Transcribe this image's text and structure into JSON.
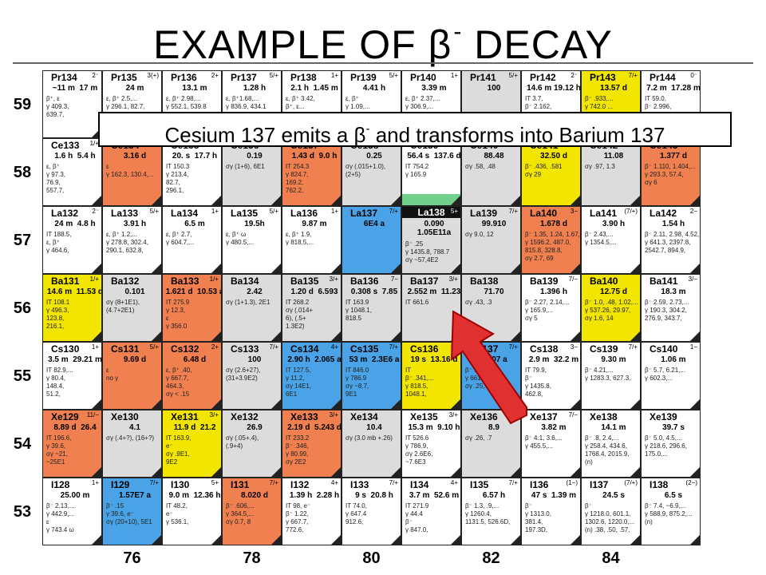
{
  "title": {
    "text": "EXAMPLE OF ",
    "beta": "β",
    "sup": "-",
    "suffix": " DECAY"
  },
  "callout": {
    "pre": "Cesium 137 emits a ",
    "beta": "β",
    "sup": "-",
    "post": " and transforms into Barium 137"
  },
  "rows": [
    "59",
    "58",
    "57",
    "56",
    "55",
    "54",
    "53"
  ],
  "cols": [
    "76",
    "78",
    "80",
    "82",
    "84"
  ],
  "colors": {
    "stable": "#dcdcdc",
    "beta_minus": "#4aa3e6",
    "beta_plus": "#f08050",
    "alpha": "#f2e600",
    "it": "#ffffff",
    "fission": "#58c878"
  },
  "grid": [
    [
      {
        "n": "Pr134",
        "s": "2⁻",
        "h": "~11 m  17 m",
        "d": "β⁺, ε\nγ 409.3,\n639.7,",
        "c": "white"
      },
      {
        "n": "Pr135",
        "s": "3(+)",
        "h": "24 m",
        "d": "ε, β⁺ 2.5,...\nγ 296.1, 82.7,\n...",
        "c": "white"
      },
      {
        "n": "Pr136",
        "s": "2+",
        "h": "13.1 m",
        "d": "ε, β⁺ 2.98,...\nγ 552.1, 539.8",
        "c": "white"
      },
      {
        "n": "Pr137",
        "s": "5/+",
        "h": "1.28 h",
        "d": "ε, β⁺1.68,...\nγ 836.9, 434.1",
        "c": "white"
      },
      {
        "n": "Pr138",
        "s": "1+",
        "h": "2.1 h  1.45 m",
        "d": "ε, β⁺ 3.42,\nβ⁺, ε...",
        "c": "white"
      },
      {
        "n": "Pr139",
        "s": "5/+",
        "h": "4.41 h",
        "d": "ε, β⁺\nγ 1.09,...",
        "c": "white"
      },
      {
        "n": "Pr140",
        "s": "1+",
        "h": "3.39 m",
        "d": "ε, β⁺ 2.37,...\nγ 306.9,...",
        "c": "white"
      },
      {
        "n": "Pr141",
        "s": "5/+",
        "h": "100",
        "d": "",
        "c": "stable",
        "band": "#4aa3e6"
      },
      {
        "n": "Pr142",
        "s": "2⁻",
        "h": "14.6 m 19.12 h",
        "d": "IT 3.7,\nβ⁻ 2.162,",
        "c": "white"
      },
      {
        "n": "Pr143",
        "s": "7/+",
        "h": "13.57 d",
        "d": "β⁻ .933,...\nγ 742.0 ...",
        "c": "yellow"
      },
      {
        "n": "Pr144",
        "s": "0⁻",
        "h": "7.2 m  17.28 m",
        "d": "IT 59.0,\nβ⁻ 2.996,\n696.5,",
        "c": "white"
      }
    ],
    [
      {
        "n": "Ce133",
        "s": "1/+",
        "h": "1.6 h  5.4 h",
        "d": "ε, β⁺\nγ 97.3,\n76.9,\n557.7,",
        "c": "white"
      },
      {
        "n": "Ce134",
        "s": "",
        "h": "3.16 d",
        "d": "ε\nγ 162.3, 130.4,...",
        "c": "orange"
      },
      {
        "n": "Ce135",
        "s": "",
        "h": "20. s  17.7 h",
        "d": "IT 150.3\nγ 213.4,\n82.7,\n296.1,",
        "c": "white"
      },
      {
        "n": "Ce136",
        "s": "",
        "h": "0.19",
        "d": "σγ (1+6), 6E1",
        "c": "stable"
      },
      {
        "n": "Ce137",
        "s": "",
        "h": "1.43 d  9.0 h",
        "d": "IT 254.3\nγ 824.7,\n169.2,\n762.2,",
        "c": "orange"
      },
      {
        "n": "Ce138",
        "s": "",
        "h": "0.25",
        "d": "σγ (.015+1.0),\n(2+5)",
        "c": "stable"
      },
      {
        "n": "Ce139",
        "s": "",
        "h": "56.4 s  137.6 d",
        "d": "IT 754.2\nγ 165.9",
        "c": "white",
        "band": "#58c878"
      },
      {
        "n": "Ce140",
        "s": "",
        "h": "88.48",
        "d": "σγ .58, .48",
        "c": "stable"
      },
      {
        "n": "Ce141",
        "s": "7/−",
        "h": "32.50 d",
        "d": "β⁻ .436, .581\nσγ 29",
        "c": "yellow"
      },
      {
        "n": "Ce142",
        "s": "",
        "h": "11.08",
        "d": "σγ .97, 1.3",
        "c": "stable"
      },
      {
        "n": "Ce143",
        "s": "3/−",
        "h": "1.377 d",
        "d": "β⁻ 1.110, 1.404,...\nγ 293.3, 57.4,\nσγ 6",
        "c": "orange"
      }
    ],
    [
      {
        "n": "La132",
        "s": "2⁻",
        "h": "24 m  4.8 h",
        "d": "IT 188.5,\nε, β⁺\nγ 464.6,",
        "c": "white"
      },
      {
        "n": "La133",
        "s": "5/+",
        "h": "3.91 h",
        "d": "ε, β⁺ 1.2,...\nγ 278.8, 302.4,\n290.1, 632.8,",
        "c": "white"
      },
      {
        "n": "La134",
        "s": "1+",
        "h": "6.5 m",
        "d": "ε, β⁺ 2.7,\nγ 604.7,...",
        "c": "white"
      },
      {
        "n": "La135",
        "s": "5/+",
        "h": "19.5h",
        "d": "ε, β⁺ ω\nγ 480.5,...",
        "c": "white"
      },
      {
        "n": "La136",
        "s": "1+",
        "h": "9.87 m",
        "d": "ε, β⁺ 1.9,\nγ 818.5,...",
        "c": "white"
      },
      {
        "n": "La137",
        "s": "7/+",
        "h": "6E4 a",
        "d": "",
        "c": "blue"
      },
      {
        "n": "La138",
        "s": "5+",
        "h": "0.090\n1.05E11a",
        "d": "β⁻ .25\nγ 1435.8, 788.7\nσγ ~57,4E2",
        "c": "stable",
        "dark": true
      },
      {
        "n": "La139",
        "s": "7/+",
        "h": "99.910",
        "d": "σγ 9.0, 12",
        "c": "stable"
      },
      {
        "n": "La140",
        "s": "3−",
        "h": "1.678 d",
        "d": "β⁻ 1.35, 1.24, 1.67,\nγ 1596.2, 487.0,\n815.8, 328.8,\nσγ 2.7, 69",
        "c": "orange"
      },
      {
        "n": "La141",
        "s": "(7/+)",
        "h": "3.90 h",
        "d": "β⁻ 2.43,...\nγ 1354.5,...",
        "c": "white"
      },
      {
        "n": "La142",
        "s": "2−",
        "h": "1.54 h",
        "d": "β⁻ 2.11, 2.98, 4.52,\nγ 641.3, 2397.8,\n2542.7, 894.9,",
        "c": "white"
      }
    ],
    [
      {
        "n": "Ba131",
        "s": "1/+",
        "h": "14.6 m  11.53 d",
        "d": "IT 108.1\nγ 496.3,\n123.8,\n216.1,",
        "c": "yellow"
      },
      {
        "n": "Ba132",
        "s": "",
        "h": "0.101",
        "d": "σγ (8+1E1),\n(4.7+2E1)",
        "c": "stable"
      },
      {
        "n": "Ba133",
        "s": "1/+",
        "h": "1.621 d  10.53 a",
        "d": "IT 275.9\nγ 12.3,\nε\nγ 356.0",
        "c": "orange"
      },
      {
        "n": "Ba134",
        "s": "",
        "h": "2.42",
        "d": "σγ (1+1.3), 2E1",
        "c": "stable"
      },
      {
        "n": "Ba135",
        "s": "3/+",
        "h": "1.20 d  6.593",
        "d": "IT 268.2\nσγ (.014+\n6), (.5+\n1.3E2)",
        "c": "stable"
      },
      {
        "n": "Ba136",
        "s": "7−",
        "h": "0.308 s  7.85",
        "d": "IT 163.9\nγ 1048.1,\n818.5",
        "c": "stable"
      },
      {
        "n": "Ba137",
        "s": "3/+",
        "h": "2.552 m  11.23",
        "d": "IT 661.6",
        "c": "stable"
      },
      {
        "n": "Ba138",
        "s": "",
        "h": "71.70",
        "d": "σγ .43, .3",
        "c": "stable"
      },
      {
        "n": "Ba139",
        "s": "7/−",
        "h": "1.396 h",
        "d": "β⁻ 2.27, 2.14,...\nγ 165.9,...\nσγ 5",
        "c": "white"
      },
      {
        "n": "Ba140",
        "s": "",
        "h": "12.75 d",
        "d": "β⁻ 1.0, .48, 1.02,...\nγ 537.26, 29.97,\nσγ 1.6, 14",
        "c": "yellow"
      },
      {
        "n": "Ba141",
        "s": "3/−",
        "h": "18.3 m",
        "d": "β⁻ 2.59, 2.73,...\nγ 190.3, 304.2,\n276.9, 343.7,",
        "c": "white"
      }
    ],
    [
      {
        "n": "Cs130",
        "s": "1+",
        "h": "3.5 m  29.21 m",
        "d": "IT 82.9,...\nγ 80.4,\n148.4,\n51.2,",
        "c": "white"
      },
      {
        "n": "Cs131",
        "s": "5/+",
        "h": "9.69 d",
        "d": "ε\nno γ",
        "c": "orange"
      },
      {
        "n": "Cs132",
        "s": "2+",
        "h": "6.48 d",
        "d": "ε, β⁺ .40,\nγ 667.7,\n464.3,\nσγ < .15",
        "c": "orange"
      },
      {
        "n": "Cs133",
        "s": "7/+",
        "h": "100",
        "d": "σγ (2.6+27),\n(31+3.9E2)",
        "c": "stable"
      },
      {
        "n": "Cs134",
        "s": "4+",
        "h": "2.90 h  2.065 a",
        "d": "IT 127.5,\nγ 11.2,\nσγ 14E1,\n6E1",
        "c": "blue"
      },
      {
        "n": "Cs135",
        "s": "7/+",
        "h": "53 m  2.3E6 a",
        "d": "IT 846.0\nγ 786.9\nσγ ~8.7,\n9E1",
        "c": "blue"
      },
      {
        "n": "Cs136",
        "s": "5+",
        "h": "19 s  13.16 d",
        "d": "IT\nβ⁻ .341,...\nγ 818.5,\n1048.1,",
        "c": "yellow"
      },
      {
        "n": "Cs137",
        "s": "7/+",
        "h": "30.07 a",
        "d": "β⁻ .514,...\nγ 661.7\nσγ .25, .4",
        "c": "blue"
      },
      {
        "n": "Cs138",
        "s": "3−",
        "h": "2.9 m  32.2 m",
        "d": "IT 79.9,\nβ⁻\nγ 1435.8,\n462.8,",
        "c": "white"
      },
      {
        "n": "Cs139",
        "s": "7/+",
        "h": "9.30 m",
        "d": "β⁻ 4.21,...\nγ 1283.3, 627.3,",
        "c": "white"
      },
      {
        "n": "Cs140",
        "s": "1−",
        "h": "1.06 m",
        "d": "β⁻ 5.7, 6.21,...\nγ 602.3,...",
        "c": "white"
      }
    ],
    [
      {
        "n": "Xe129",
        "s": "11/−",
        "h": "8.89 d  26.4",
        "d": "IT 196.6,\nγ 39.6,\nσγ ~21,\n~25E1",
        "c": "orange"
      },
      {
        "n": "Xe130",
        "s": "",
        "h": "4.1",
        "d": "σγ (.4+?), (16+?)",
        "c": "stable"
      },
      {
        "n": "Xe131",
        "s": "3/+",
        "h": "11.9 d  21.2",
        "d": "IT 163.9,\ne⁻\nσγ .9E1,\n9E2",
        "c": "yellow"
      },
      {
        "n": "Xe132",
        "s": "",
        "h": "26.9",
        "d": "σγ (.05+.4),\n(.9+4)",
        "c": "stable"
      },
      {
        "n": "Xe133",
        "s": "3/+",
        "h": "2.19 d  5.243 d",
        "d": "IT 233.2\nβ⁻ .346,\nγ 80.99,\nσγ 2E2",
        "c": "orange"
      },
      {
        "n": "Xe134",
        "s": "",
        "h": "10.4",
        "d": "σγ (3.0 mb +.26)",
        "c": "stable"
      },
      {
        "n": "Xe135",
        "s": "3/+",
        "h": "15.3 m  9.10 h",
        "d": "IT 526.6\nγ 786.9,\nσγ 2.6E6,\n~7.6E3",
        "c": "white"
      },
      {
        "n": "Xe136",
        "s": "",
        "h": "8.9",
        "d": "σγ .26, .7",
        "c": "stable"
      },
      {
        "n": "Xe137",
        "s": "7/−",
        "h": "3.82 m",
        "d": "β⁻ 4.1, 3.6,...\nγ 455.5,...",
        "c": "white"
      },
      {
        "n": "Xe138",
        "s": "",
        "h": "14.1 m",
        "d": "β⁻ .8, 2.4,...\nγ 258.4, 434.6,\n1768.4, 2015.9,\n(n)",
        "c": "white"
      },
      {
        "n": "Xe139",
        "s": "",
        "h": "39.7 s",
        "d": "β⁻ 5.0, 4.5,...\nγ 218.6, 296.6,\n175.0,...",
        "c": "white"
      }
    ],
    [
      {
        "n": "I128",
        "s": "1+",
        "h": "25.00 m",
        "d": "β⁻ 2.13,...\nγ 442.9,...\nε\nγ 743.4 ω",
        "c": "white"
      },
      {
        "n": "I129",
        "s": "7/+",
        "h": "1.57E7 a",
        "d": "β⁻ .15\nγ 39.6, e⁻\nσγ (20+10), 5E1",
        "c": "blue"
      },
      {
        "n": "I130",
        "s": "5+",
        "h": "9.0 m  12.36 h",
        "d": "IT 48.2,\ne⁻\nγ 536.1,",
        "c": "white"
      },
      {
        "n": "I131",
        "s": "7/+",
        "h": "8.020 d",
        "d": "β⁻ .606,...\nγ 364.5,...\nσγ 0.7, 8",
        "c": "orange"
      },
      {
        "n": "I132",
        "s": "4+",
        "h": "1.39 h  2.28 h",
        "d": "IT 98, e⁻\nβ⁻ 1.22,\nγ 667.7,\n772.6,",
        "c": "white"
      },
      {
        "n": "I133",
        "s": "7/+",
        "h": "9 s  20.8 h",
        "d": "IT 74.0,\nγ 647.4\n912.6,",
        "c": "white"
      },
      {
        "n": "I134",
        "s": "4+",
        "h": "3.7 m  52.6 m",
        "d": "IT 271.9\nγ 44.4\nβ⁻\nγ 847.0,",
        "c": "white"
      },
      {
        "n": "I135",
        "s": "7/+",
        "h": "6.57 h",
        "d": "β⁻ 1.3, .9,...\nγ 1260.4,\n1131.5, 526.6D,",
        "c": "white"
      },
      {
        "n": "I136",
        "s": "(1−)",
        "h": "47 s  1.39 m",
        "d": "β⁻\nγ 1313.0,\n381.4,\n197.3D,",
        "c": "white"
      },
      {
        "n": "I137",
        "s": "(7/+)",
        "h": "24.5 s",
        "d": "β⁻\nγ 1218.0, 601.1,\n1302.6, 1220.0,...\n(n) .38, .50, .57,",
        "c": "white"
      },
      {
        "n": "I138",
        "s": "(2−)",
        "h": "6.5 s",
        "d": "β⁻ 7.4, ~6.9,...\nγ 588.9, 875.2,...\n(n)",
        "c": "white"
      }
    ]
  ]
}
